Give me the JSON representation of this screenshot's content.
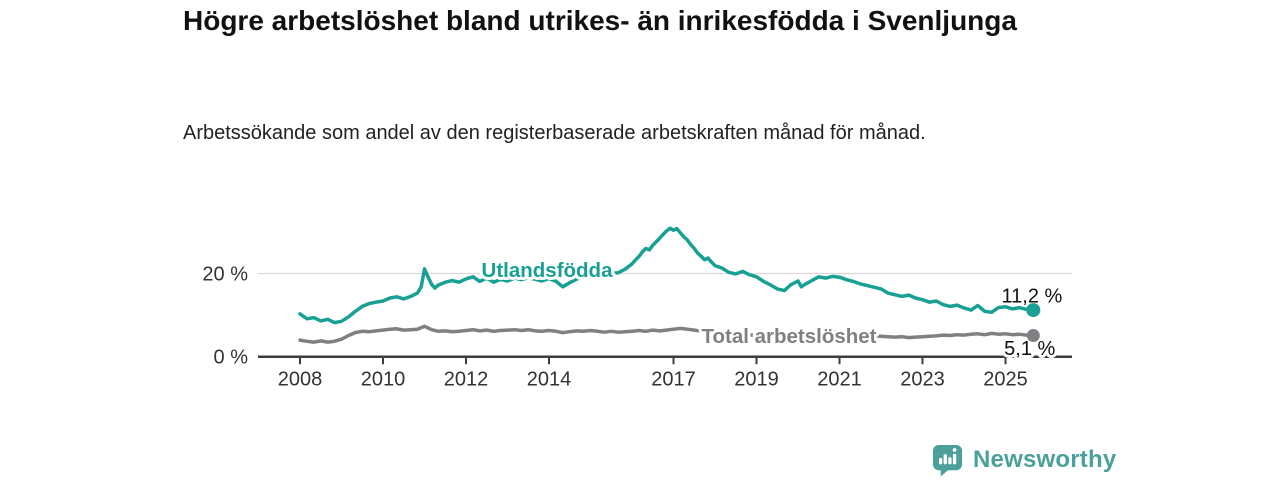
{
  "header": {
    "title": "Högre arbetslöshet bland utrikes- än inrikesfödda i Svenljunga",
    "subtitle": "Arbetssökande som andel av den registerbaserade arbetskraften månad för månad."
  },
  "branding": {
    "logo_text": "Newsworthy",
    "logo_icon": "bar-chart-speech-bubble-icon",
    "brand_color": "#4BA09B"
  },
  "colors": {
    "foreign_born_line": "#17A093",
    "total_line": "#808084",
    "axis": "#3c3c3c",
    "gridline": "#d9d9d9",
    "text": "#333333"
  },
  "chart_data": {
    "type": "line",
    "title": "Högre arbetslöshet bland utrikes- än inrikesfödda i Svenljunga",
    "xlabel": "",
    "ylabel": "",
    "xlim": [
      2007.25,
      2026.35
    ],
    "ylim": [
      0,
      34
    ],
    "grid": "y-at-20-only",
    "legend_position": "inline-on-lines",
    "x_ticks": [
      {
        "x": 2008,
        "label": "2008"
      },
      {
        "x": 2010,
        "label": "2010"
      },
      {
        "x": 2012,
        "label": "2012"
      },
      {
        "x": 2014,
        "label": "2014"
      },
      {
        "x": 2017,
        "label": "2017"
      },
      {
        "x": 2019,
        "label": "2019"
      },
      {
        "x": 2021,
        "label": "2021"
      },
      {
        "x": 2023,
        "label": "2023"
      },
      {
        "x": 2025,
        "label": "2025"
      }
    ],
    "y_ticks": [
      {
        "v": 0,
        "label": "0 %"
      },
      {
        "v": 20,
        "label": "20 %"
      }
    ],
    "series": [
      {
        "name": "Utlandsfödda",
        "color": "#17A093",
        "end_label": "11,2 %",
        "latest_value": 11.2,
        "points": [
          [
            2008.0,
            10.3
          ],
          [
            2008.17,
            9.1
          ],
          [
            2008.33,
            9.4
          ],
          [
            2008.5,
            8.6
          ],
          [
            2008.67,
            9.0
          ],
          [
            2008.83,
            8.2
          ],
          [
            2009.0,
            8.5
          ],
          [
            2009.17,
            9.6
          ],
          [
            2009.33,
            10.9
          ],
          [
            2009.5,
            12.1
          ],
          [
            2009.67,
            12.8
          ],
          [
            2009.83,
            13.1
          ],
          [
            2010.0,
            13.4
          ],
          [
            2010.17,
            14.1
          ],
          [
            2010.33,
            14.4
          ],
          [
            2010.5,
            13.9
          ],
          [
            2010.67,
            14.5
          ],
          [
            2010.83,
            15.3
          ],
          [
            2010.92,
            16.8
          ],
          [
            2011.0,
            21.1
          ],
          [
            2011.08,
            19.3
          ],
          [
            2011.17,
            17.4
          ],
          [
            2011.25,
            16.5
          ],
          [
            2011.33,
            17.2
          ],
          [
            2011.5,
            17.9
          ],
          [
            2011.67,
            18.3
          ],
          [
            2011.83,
            17.9
          ],
          [
            2012.0,
            18.7
          ],
          [
            2012.17,
            19.2
          ],
          [
            2012.33,
            18.1
          ],
          [
            2012.5,
            18.9
          ],
          [
            2012.67,
            17.9
          ],
          [
            2012.83,
            18.6
          ],
          [
            2013.0,
            18.2
          ],
          [
            2013.17,
            18.9
          ],
          [
            2013.33,
            18.5
          ],
          [
            2013.5,
            19.0
          ],
          [
            2013.67,
            18.6
          ],
          [
            2013.83,
            18.2
          ],
          [
            2014.0,
            18.8
          ],
          [
            2014.17,
            18.1
          ],
          [
            2014.33,
            16.8
          ],
          [
            2014.5,
            17.8
          ],
          [
            2014.67,
            18.7
          ],
          [
            2014.83,
            19.2
          ],
          [
            2015.0,
            19.5
          ],
          [
            2015.17,
            19.8
          ],
          [
            2015.33,
            19.4
          ],
          [
            2015.5,
            20.0
          ],
          [
            2015.67,
            20.2
          ],
          [
            2015.83,
            21.0
          ],
          [
            2016.0,
            22.3
          ],
          [
            2016.08,
            23.2
          ],
          [
            2016.17,
            24.1
          ],
          [
            2016.25,
            25.2
          ],
          [
            2016.33,
            26.0
          ],
          [
            2016.42,
            25.7
          ],
          [
            2016.5,
            26.8
          ],
          [
            2016.58,
            27.6
          ],
          [
            2016.67,
            28.5
          ],
          [
            2016.75,
            29.4
          ],
          [
            2016.83,
            30.2
          ],
          [
            2016.92,
            30.9
          ],
          [
            2017.0,
            30.4
          ],
          [
            2017.08,
            30.8
          ],
          [
            2017.17,
            29.7
          ],
          [
            2017.25,
            28.8
          ],
          [
            2017.33,
            28.1
          ],
          [
            2017.42,
            26.9
          ],
          [
            2017.5,
            26.0
          ],
          [
            2017.58,
            24.9
          ],
          [
            2017.67,
            24.1
          ],
          [
            2017.75,
            23.3
          ],
          [
            2017.83,
            23.7
          ],
          [
            2017.92,
            22.7
          ],
          [
            2018.0,
            21.9
          ],
          [
            2018.17,
            21.3
          ],
          [
            2018.33,
            20.3
          ],
          [
            2018.5,
            19.9
          ],
          [
            2018.67,
            20.5
          ],
          [
            2018.83,
            19.7
          ],
          [
            2019.0,
            19.2
          ],
          [
            2019.17,
            18.1
          ],
          [
            2019.33,
            17.3
          ],
          [
            2019.5,
            16.3
          ],
          [
            2019.67,
            15.9
          ],
          [
            2019.83,
            17.3
          ],
          [
            2020.0,
            18.2
          ],
          [
            2020.08,
            16.8
          ],
          [
            2020.17,
            17.4
          ],
          [
            2020.33,
            18.3
          ],
          [
            2020.5,
            19.2
          ],
          [
            2020.67,
            18.9
          ],
          [
            2020.83,
            19.3
          ],
          [
            2021.0,
            19.1
          ],
          [
            2021.17,
            18.5
          ],
          [
            2021.33,
            18.1
          ],
          [
            2021.5,
            17.5
          ],
          [
            2021.67,
            17.1
          ],
          [
            2021.83,
            16.7
          ],
          [
            2022.0,
            16.3
          ],
          [
            2022.17,
            15.3
          ],
          [
            2022.33,
            14.9
          ],
          [
            2022.5,
            14.5
          ],
          [
            2022.67,
            14.8
          ],
          [
            2022.83,
            14.1
          ],
          [
            2023.0,
            13.7
          ],
          [
            2023.17,
            13.1
          ],
          [
            2023.33,
            13.4
          ],
          [
            2023.5,
            12.5
          ],
          [
            2023.67,
            12.1
          ],
          [
            2023.83,
            12.4
          ],
          [
            2024.0,
            11.7
          ],
          [
            2024.17,
            11.2
          ],
          [
            2024.33,
            12.3
          ],
          [
            2024.5,
            10.9
          ],
          [
            2024.67,
            10.7
          ],
          [
            2024.83,
            11.8
          ],
          [
            2025.0,
            12.0
          ],
          [
            2025.17,
            11.5
          ],
          [
            2025.33,
            11.8
          ],
          [
            2025.5,
            11.4
          ],
          [
            2025.67,
            11.2
          ]
        ]
      },
      {
        "name": "Total arbetslöshet",
        "color": "#808084",
        "end_label": "5,1 %",
        "latest_value": 5.1,
        "points": [
          [
            2008.0,
            4.0
          ],
          [
            2008.17,
            3.7
          ],
          [
            2008.33,
            3.5
          ],
          [
            2008.5,
            3.8
          ],
          [
            2008.67,
            3.5
          ],
          [
            2008.83,
            3.7
          ],
          [
            2009.0,
            4.2
          ],
          [
            2009.17,
            5.1
          ],
          [
            2009.33,
            5.8
          ],
          [
            2009.5,
            6.1
          ],
          [
            2009.67,
            6.0
          ],
          [
            2009.83,
            6.2
          ],
          [
            2010.0,
            6.4
          ],
          [
            2010.17,
            6.6
          ],
          [
            2010.33,
            6.7
          ],
          [
            2010.5,
            6.4
          ],
          [
            2010.67,
            6.5
          ],
          [
            2010.83,
            6.6
          ],
          [
            2011.0,
            7.3
          ],
          [
            2011.17,
            6.5
          ],
          [
            2011.33,
            6.1
          ],
          [
            2011.5,
            6.2
          ],
          [
            2011.67,
            6.0
          ],
          [
            2011.83,
            6.1
          ],
          [
            2012.0,
            6.3
          ],
          [
            2012.17,
            6.5
          ],
          [
            2012.33,
            6.2
          ],
          [
            2012.5,
            6.4
          ],
          [
            2012.67,
            6.1
          ],
          [
            2012.83,
            6.3
          ],
          [
            2013.0,
            6.4
          ],
          [
            2013.17,
            6.5
          ],
          [
            2013.33,
            6.3
          ],
          [
            2013.5,
            6.5
          ],
          [
            2013.67,
            6.2
          ],
          [
            2013.83,
            6.1
          ],
          [
            2014.0,
            6.3
          ],
          [
            2014.17,
            6.1
          ],
          [
            2014.33,
            5.8
          ],
          [
            2014.5,
            6.0
          ],
          [
            2014.67,
            6.2
          ],
          [
            2014.83,
            6.1
          ],
          [
            2015.0,
            6.3
          ],
          [
            2015.17,
            6.1
          ],
          [
            2015.33,
            5.9
          ],
          [
            2015.5,
            6.1
          ],
          [
            2015.67,
            5.9
          ],
          [
            2015.83,
            6.0
          ],
          [
            2016.0,
            6.1
          ],
          [
            2016.17,
            6.3
          ],
          [
            2016.33,
            6.1
          ],
          [
            2016.5,
            6.4
          ],
          [
            2016.67,
            6.2
          ],
          [
            2016.83,
            6.4
          ],
          [
            2017.0,
            6.6
          ],
          [
            2017.17,
            6.8
          ],
          [
            2017.33,
            6.6
          ],
          [
            2017.5,
            6.4
          ],
          [
            2017.67,
            6.1
          ],
          [
            2017.83,
            5.9
          ],
          [
            2018.0,
            5.8
          ],
          [
            2018.17,
            5.6
          ],
          [
            2018.33,
            5.4
          ],
          [
            2018.5,
            5.5
          ],
          [
            2018.67,
            5.3
          ],
          [
            2018.83,
            5.2
          ],
          [
            2019.0,
            5.3
          ],
          [
            2019.17,
            5.1
          ],
          [
            2019.33,
            4.9
          ],
          [
            2019.5,
            4.7
          ],
          [
            2019.67,
            4.8
          ],
          [
            2019.83,
            5.1
          ],
          [
            2020.0,
            5.3
          ],
          [
            2020.17,
            5.5
          ],
          [
            2020.33,
            5.9
          ],
          [
            2020.5,
            6.1
          ],
          [
            2020.67,
            5.9
          ],
          [
            2020.83,
            6.0
          ],
          [
            2021.0,
            5.9
          ],
          [
            2021.17,
            5.7
          ],
          [
            2021.33,
            5.5
          ],
          [
            2021.5,
            5.3
          ],
          [
            2021.67,
            5.1
          ],
          [
            2021.83,
            5.0
          ],
          [
            2022.0,
            4.9
          ],
          [
            2022.17,
            4.8
          ],
          [
            2022.33,
            4.7
          ],
          [
            2022.5,
            4.8
          ],
          [
            2022.67,
            4.6
          ],
          [
            2022.83,
            4.7
          ],
          [
            2023.0,
            4.8
          ],
          [
            2023.17,
            4.9
          ],
          [
            2023.33,
            5.0
          ],
          [
            2023.5,
            5.2
          ],
          [
            2023.67,
            5.1
          ],
          [
            2023.83,
            5.3
          ],
          [
            2024.0,
            5.2
          ],
          [
            2024.17,
            5.4
          ],
          [
            2024.33,
            5.5
          ],
          [
            2024.5,
            5.3
          ],
          [
            2024.67,
            5.6
          ],
          [
            2024.83,
            5.4
          ],
          [
            2025.0,
            5.5
          ],
          [
            2025.17,
            5.3
          ],
          [
            2025.33,
            5.4
          ],
          [
            2025.5,
            5.2
          ],
          [
            2025.67,
            5.1
          ]
        ]
      }
    ]
  }
}
